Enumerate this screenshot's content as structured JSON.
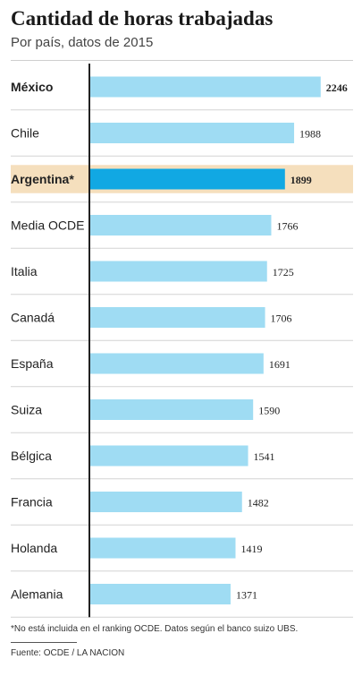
{
  "header": {
    "title": "Cantidad de horas trabajadas",
    "subtitle": "Por país, datos de 2015"
  },
  "chart_data": {
    "type": "bar",
    "orientation": "horizontal",
    "title": "Cantidad de horas trabajadas",
    "subtitle": "Por país, datos de 2015",
    "categories": [
      "México",
      "Chile",
      "Argentina*",
      "Media OCDE",
      "Italia",
      "Canadá",
      "España",
      "Suiza",
      "Bélgica",
      "Francia",
      "Holanda",
      "Alemania"
    ],
    "values": [
      2246,
      1988,
      1899,
      1766,
      1725,
      1706,
      1691,
      1590,
      1541,
      1482,
      1419,
      1371
    ],
    "highlighted": [
      "Argentina*"
    ],
    "bold_labels": [
      "México",
      "Argentina*"
    ],
    "xlim": [
      0,
      2300
    ],
    "grid": false,
    "colors": {
      "bar": "#9fdcf3",
      "bar_highlight": "#11a8e3",
      "row_highlight": "#f5dfbd",
      "axis": "#222222"
    }
  },
  "footer": {
    "footnote": "*No está incluida en el ranking OCDE. Datos según el banco suizo UBS.",
    "source": "Fuente: OCDE / LA NACION"
  }
}
